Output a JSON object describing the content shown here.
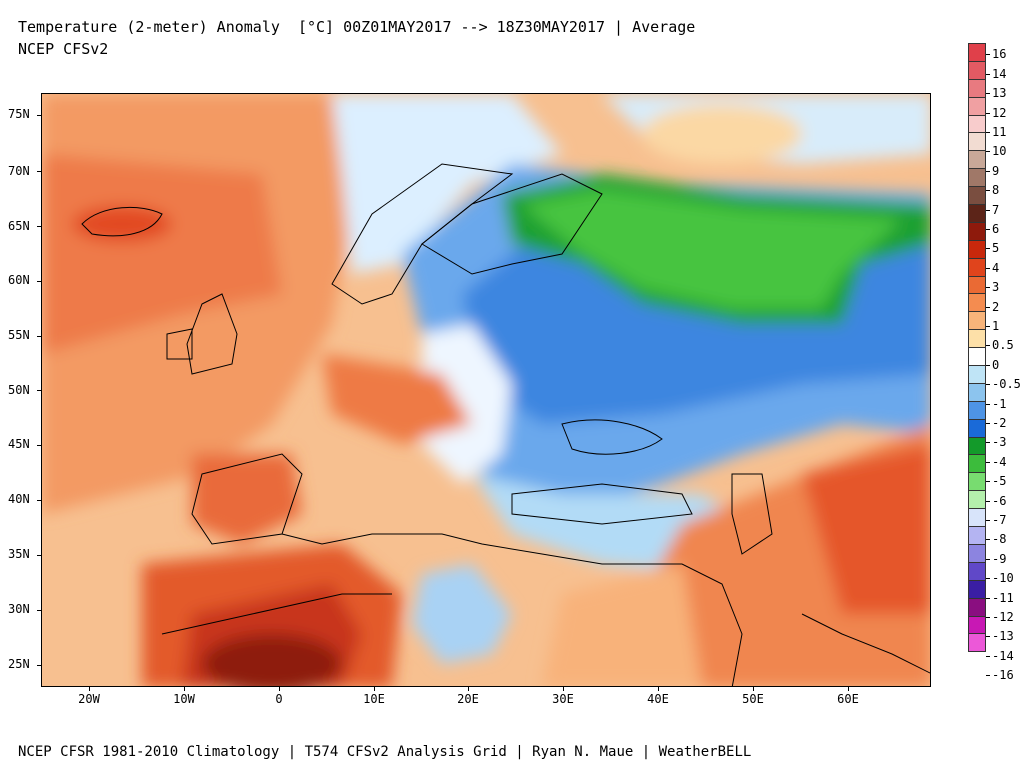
{
  "header": {
    "title_line1": "Temperature (2-meter) Anomaly  [°C] 00Z01MAY2017 --> 18Z30MAY2017 | Average",
    "title_line2": "NCEP CFSv2"
  },
  "footer": {
    "credits": "NCEP CFSR 1981-2010 Climatology | T574 CFSv2 Analysis Grid | Ryan N. Maue | WeatherBELL"
  },
  "map": {
    "lat_labels": [
      "75N",
      "70N",
      "65N",
      "60N",
      "55N",
      "50N",
      "45N",
      "40N",
      "35N",
      "30N",
      "25N"
    ],
    "lon_labels": [
      "20W",
      "10W",
      "0",
      "10E",
      "20E",
      "30E",
      "40E",
      "50E",
      "60E"
    ]
  },
  "legend": {
    "labels": [
      "16",
      "14",
      "13",
      "12",
      "11",
      "10",
      "9",
      "8",
      "7",
      "6",
      "5",
      "4",
      "3",
      "2",
      "1",
      "0.5",
      "0",
      "-0.5",
      "-1",
      "-2",
      "-3",
      "-4",
      "-5",
      "-6",
      "-7",
      "-8",
      "-9",
      "-10",
      "-11",
      "-12",
      "-13",
      "-14",
      "-16"
    ],
    "colors": [
      "#e0404a",
      "#e25a63",
      "#e87a80",
      "#f0a0a2",
      "#f8cccc",
      "#f2dcd2",
      "#c8a898",
      "#a07868",
      "#7a4e40",
      "#5c2418",
      "#8e1a0c",
      "#c8280c",
      "#e0441c",
      "#ea6a34",
      "#f48c50",
      "#f8b47a",
      "#fde0a8",
      "#ffffff",
      "#bfe4f6",
      "#8cc4ee",
      "#4e94e6",
      "#1a6ad8",
      "#139a2a",
      "#3cbc3c",
      "#78dc70",
      "#b4f0ac",
      "#d8e4fa",
      "#b4b4f2",
      "#8c84e0",
      "#6048c8",
      "#3a1ea4",
      "#8a0e80",
      "#c818b4",
      "#ec58d8"
    ]
  }
}
